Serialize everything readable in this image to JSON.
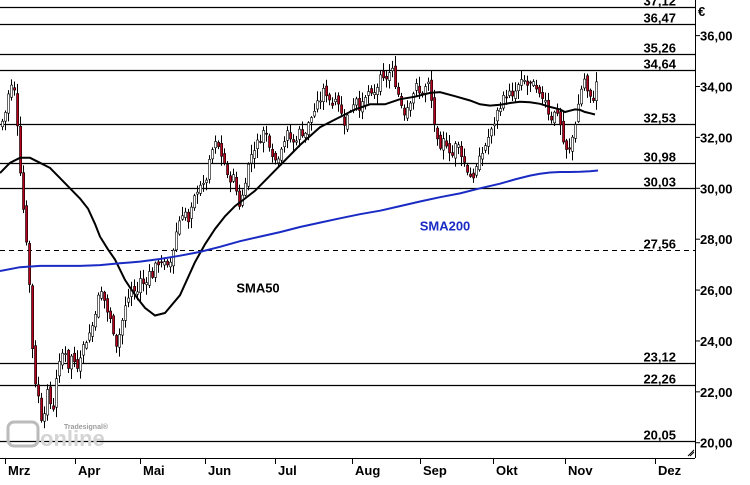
{
  "chart_data": {
    "type": "candlestick",
    "currency": "€",
    "x_labels": [
      "Mrz",
      "Apr",
      "Mai",
      "Jun",
      "Jul",
      "Aug",
      "Sep",
      "Okt",
      "Nov",
      "Dez"
    ],
    "y_ticks": [
      "20,00",
      "22,00",
      "24,00",
      "26,00",
      "28,00",
      "30,00",
      "32,00",
      "34,00",
      "36,00"
    ],
    "y_tick_values": [
      20,
      22,
      24,
      26,
      28,
      30,
      32,
      34,
      36
    ],
    "ylim": [
      19.4,
      37.4
    ],
    "grid": false,
    "levels": [
      {
        "label": "37,12",
        "value": 37.12,
        "style": "solid"
      },
      {
        "label": "36,47",
        "value": 36.47,
        "style": "solid"
      },
      {
        "label": "35,26",
        "value": 35.26,
        "style": "solid"
      },
      {
        "label": "34,64",
        "value": 34.64,
        "style": "solid"
      },
      {
        "label": "32,53",
        "value": 32.53,
        "style": "solid"
      },
      {
        "label": "30,98",
        "value": 30.98,
        "style": "solid"
      },
      {
        "label": "30,03",
        "value": 30.03,
        "style": "solid"
      },
      {
        "label": "27,56",
        "value": 27.56,
        "style": "dashed"
      },
      {
        "label": "23,12",
        "value": 23.12,
        "style": "solid"
      },
      {
        "label": "22,26",
        "value": 22.26,
        "style": "solid"
      },
      {
        "label": "20,05",
        "value": 20.05,
        "style": "solid"
      }
    ],
    "series": [
      {
        "name": "SMA50",
        "color": "#000000",
        "x": [
          0,
          10,
          20,
          30,
          40,
          50,
          60,
          70,
          80,
          88,
          95,
          100,
          108,
          115,
          120,
          125,
          130,
          137,
          145,
          155,
          165,
          180,
          195,
          205,
          215,
          225,
          235,
          245,
          255,
          265,
          280,
          300,
          320,
          340,
          355,
          370,
          385,
          400,
          415,
          430,
          440,
          455,
          470,
          480,
          490,
          500,
          510,
          520,
          530,
          540,
          550,
          560,
          565,
          570,
          575,
          580,
          585,
          590,
          595
        ],
        "y": [
          30.6,
          31.0,
          31.2,
          31.2,
          31.0,
          30.8,
          30.4,
          30.0,
          29.6,
          29.2,
          28.6,
          28.1,
          27.6,
          27.2,
          26.8,
          26.4,
          26.1,
          25.7,
          25.3,
          25.0,
          25.1,
          25.8,
          27.1,
          27.8,
          28.4,
          28.9,
          29.3,
          29.6,
          29.9,
          30.3,
          30.9,
          31.7,
          32.4,
          32.8,
          33.1,
          33.3,
          33.3,
          33.5,
          33.6,
          33.75,
          33.78,
          33.62,
          33.45,
          33.3,
          33.25,
          33.28,
          33.35,
          33.4,
          33.38,
          33.32,
          33.2,
          33.1,
          33.0,
          33.05,
          33.1,
          33.08,
          33.0,
          32.95,
          32.9
        ]
      },
      {
        "name": "SMA200",
        "color": "#1a2bc4",
        "x": [
          0,
          20,
          40,
          60,
          80,
          100,
          120,
          140,
          160,
          180,
          200,
          220,
          240,
          260,
          280,
          300,
          320,
          340,
          360,
          380,
          400,
          420,
          440,
          460,
          480,
          500,
          515,
          530,
          540,
          550,
          560,
          570,
          580,
          590,
          598
        ],
        "y": [
          26.75,
          26.9,
          26.95,
          26.95,
          26.95,
          26.98,
          27.05,
          27.12,
          27.22,
          27.35,
          27.5,
          27.7,
          27.92,
          28.1,
          28.28,
          28.48,
          28.65,
          28.82,
          28.98,
          29.12,
          29.3,
          29.48,
          29.65,
          29.8,
          30.0,
          30.18,
          30.35,
          30.5,
          30.57,
          30.62,
          30.64,
          30.64,
          30.65,
          30.67,
          30.7
        ]
      }
    ],
    "annotations": [
      {
        "text": "SMA50",
        "x": 258,
        "y": 25.9
      },
      {
        "text": "SMA200",
        "x": 445,
        "y": 28.35
      }
    ],
    "logo": {
      "top": "Tradesignal®",
      "word": "online"
    }
  }
}
